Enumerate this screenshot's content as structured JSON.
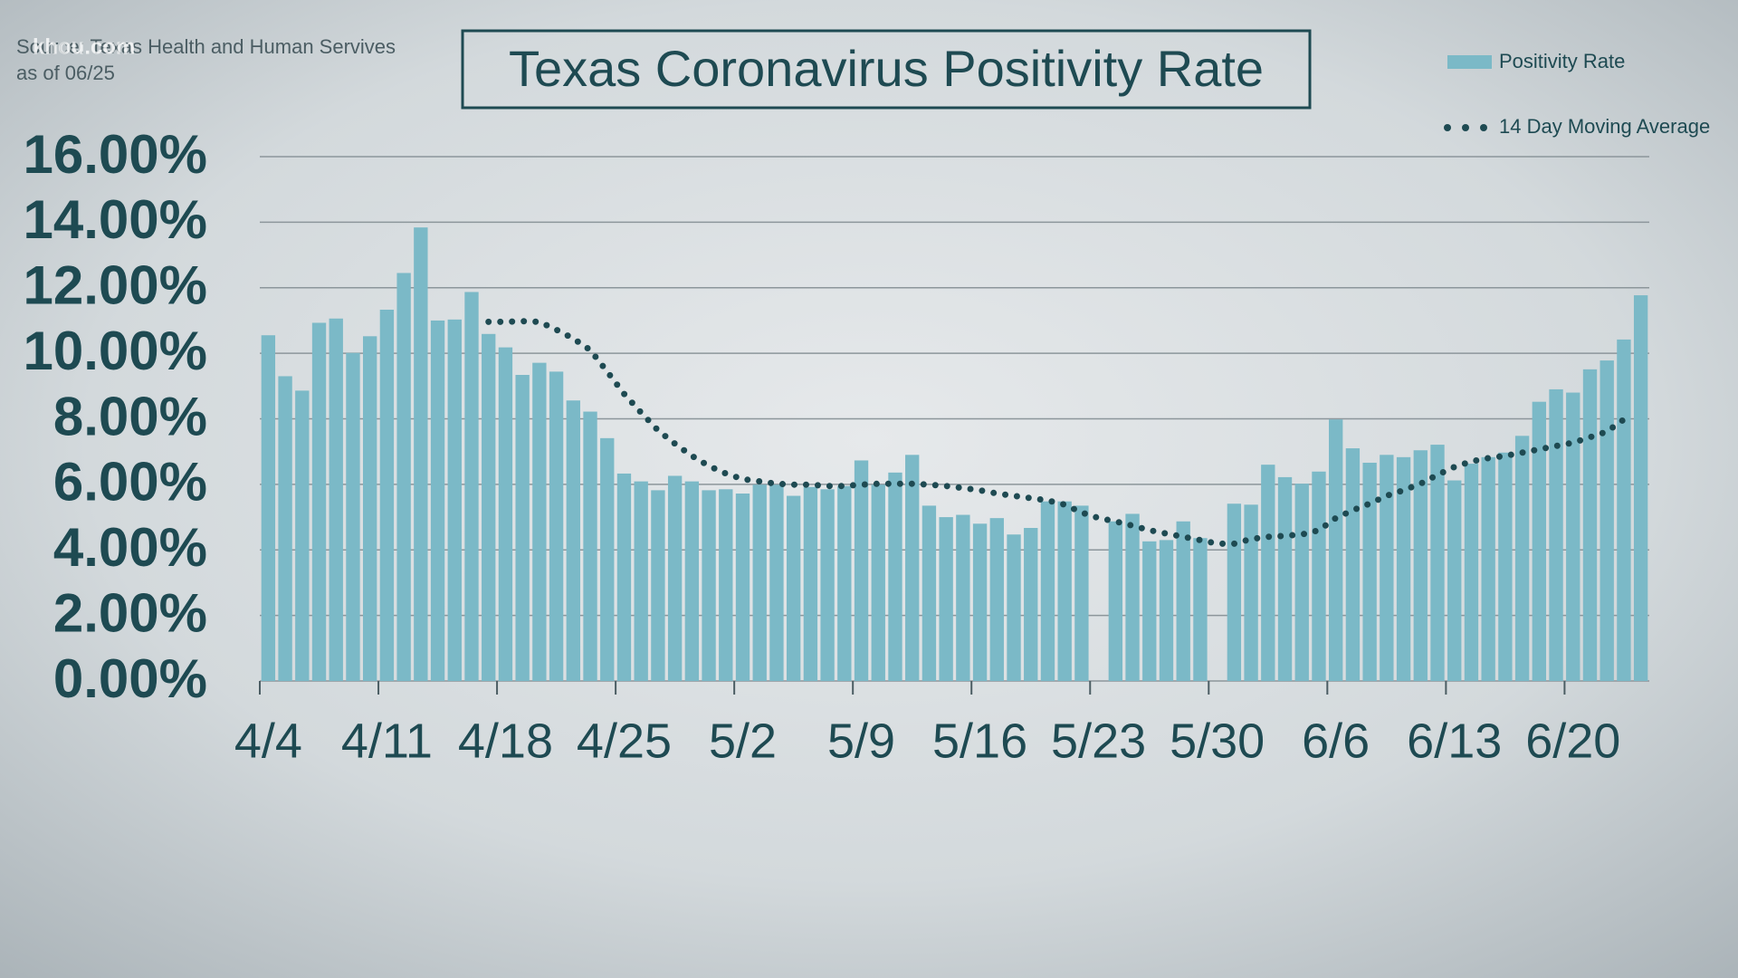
{
  "chart_data": {
    "type": "bar",
    "title": "Texas Coronavirus Positivity Rate",
    "source": "Source: Texas Health and Human Servives",
    "as_of": "as of 06/25",
    "watermark": "khou.com",
    "categories": [
      "4/4",
      null,
      null,
      null,
      null,
      null,
      null,
      "4/11",
      null,
      null,
      null,
      null,
      null,
      null,
      "4/18",
      null,
      null,
      null,
      null,
      null,
      null,
      "4/25",
      null,
      null,
      null,
      null,
      null,
      null,
      "5/2",
      null,
      null,
      null,
      null,
      null,
      null,
      "5/9",
      null,
      null,
      null,
      null,
      null,
      null,
      "5/16",
      null,
      null,
      null,
      null,
      null,
      null,
      "5/23",
      null,
      null,
      null,
      null,
      null,
      null,
      "5/30",
      null,
      null,
      null,
      null,
      null,
      null,
      "6/6",
      null,
      null,
      null,
      null,
      null,
      null,
      "6/13",
      null,
      null,
      null,
      null,
      null,
      null,
      "6/20",
      null,
      null,
      null,
      null
    ],
    "series": [
      {
        "name": "Positivity Rate",
        "type": "bar",
        "color": "#7bb9c7",
        "values": [
          10.55,
          9.3,
          8.86,
          10.93,
          11.06,
          10.01,
          10.52,
          11.33,
          12.45,
          13.84,
          11.0,
          11.03,
          11.87,
          10.59,
          10.18,
          9.34,
          9.71,
          9.44,
          8.56,
          8.22,
          7.41,
          6.33,
          6.09,
          5.82,
          6.26,
          6.09,
          5.82,
          5.85,
          5.72,
          5.99,
          5.99,
          5.65,
          5.92,
          5.85,
          5.95,
          6.73,
          5.99,
          6.36,
          6.9,
          5.35,
          5.0,
          5.07,
          4.8,
          4.97,
          4.47,
          4.67,
          5.48,
          5.48,
          5.35,
          null,
          4.87,
          5.1,
          4.26,
          4.3,
          4.87,
          4.36,
          null,
          5.41,
          5.38,
          6.6,
          6.22,
          6.02,
          6.39,
          7.98,
          7.1,
          6.66,
          6.9,
          6.83,
          7.04,
          7.21,
          6.12,
          6.63,
          6.83,
          6.97,
          7.48,
          8.52,
          8.9,
          8.8,
          9.51,
          9.78,
          10.42,
          11.77
        ]
      },
      {
        "name": "14 Day Moving Average",
        "type": "line",
        "color": "#1e4a52",
        "values": [
          null,
          null,
          null,
          null,
          null,
          null,
          null,
          null,
          null,
          null,
          null,
          null,
          null,
          10.96,
          10.96,
          10.98,
          10.96,
          10.72,
          10.45,
          10.1,
          9.44,
          8.76,
          8.19,
          7.65,
          7.24,
          6.87,
          6.56,
          6.33,
          6.16,
          6.09,
          6.02,
          5.99,
          5.99,
          5.95,
          5.95,
          5.99,
          6.02,
          6.02,
          6.02,
          5.99,
          5.95,
          5.89,
          5.82,
          5.72,
          5.65,
          5.58,
          5.51,
          5.38,
          5.14,
          4.97,
          4.87,
          4.74,
          4.6,
          4.5,
          4.4,
          4.3,
          4.19,
          4.19,
          4.33,
          4.4,
          4.43,
          4.47,
          4.6,
          4.97,
          5.21,
          5.41,
          5.65,
          5.82,
          6.02,
          6.29,
          6.53,
          6.7,
          6.8,
          6.87,
          6.97,
          7.07,
          7.17,
          7.27,
          7.44,
          7.61,
          7.98,
          null
        ]
      }
    ],
    "ylim": [
      0,
      16
    ],
    "yticks": [
      {
        "value": 0,
        "label": "0.00%"
      },
      {
        "value": 2,
        "label": "2.00%"
      },
      {
        "value": 4,
        "label": "4.00%"
      },
      {
        "value": 6,
        "label": "6.00%"
      },
      {
        "value": 8,
        "label": "8.00%"
      },
      {
        "value": 10,
        "label": "10.00%"
      },
      {
        "value": 12,
        "label": "12.00%"
      },
      {
        "value": 14,
        "label": "14.00%"
      },
      {
        "value": 16,
        "label": "16.00%"
      }
    ],
    "grid": true
  }
}
